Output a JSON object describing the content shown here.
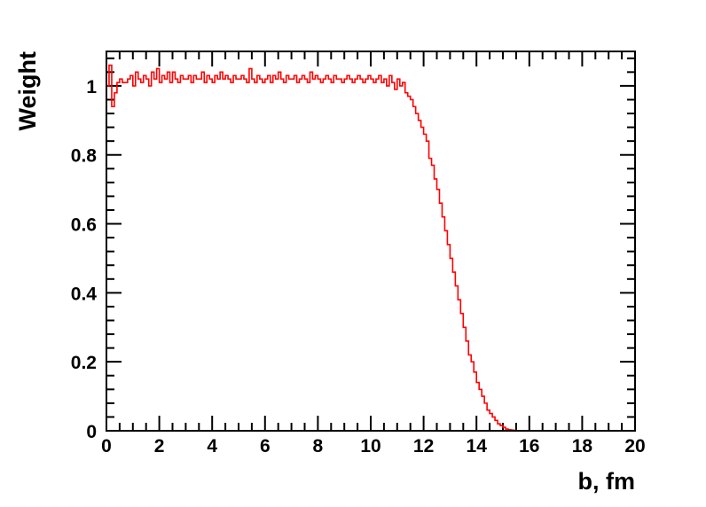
{
  "chart_data": {
    "type": "histogram",
    "title": "",
    "xlabel": "b, fm",
    "ylabel": "Weight",
    "xlim": [
      0,
      20
    ],
    "ylim": [
      0,
      1.1
    ],
    "x_ticks": [
      0,
      2,
      4,
      6,
      8,
      10,
      12,
      14,
      16,
      18,
      20
    ],
    "x_tick_labels": [
      "0",
      "2",
      "4",
      "6",
      "8",
      "10",
      "12",
      "14",
      "16",
      "18",
      "20"
    ],
    "y_ticks": [
      0,
      0.2,
      0.4,
      0.6,
      0.8,
      1
    ],
    "y_tick_labels": [
      "0",
      "0.2",
      "0.4",
      "0.6",
      "0.8",
      "1"
    ],
    "grid": false,
    "legend": "none",
    "bin_width": 0.1,
    "series": [
      {
        "color": "#ff0000",
        "values": [
          1.0,
          1.06,
          0.94,
          0.98,
          1.01,
          1.02,
          1.01,
          1.01,
          1.02,
          1.03,
          1.0,
          1.04,
          1.02,
          1.01,
          1.03,
          1.02,
          1.0,
          1.04,
          1.02,
          1.05,
          1.01,
          1.03,
          1.02,
          1.04,
          1.01,
          1.04,
          1.02,
          1.01,
          1.03,
          1.02,
          1.02,
          1.03,
          1.01,
          1.03,
          1.02,
          1.02,
          1.04,
          1.01,
          1.03,
          1.02,
          1.01,
          1.03,
          1.02,
          1.04,
          1.02,
          1.03,
          1.02,
          1.01,
          1.03,
          1.02,
          1.02,
          1.03,
          1.02,
          1.01,
          1.05,
          1.02,
          1.01,
          1.03,
          1.02,
          1.01,
          1.02,
          1.03,
          1.01,
          1.03,
          1.02,
          1.04,
          1.02,
          1.01,
          1.03,
          1.02,
          1.02,
          1.03,
          1.01,
          1.02,
          1.03,
          1.02,
          1.01,
          1.04,
          1.02,
          1.03,
          1.02,
          1.01,
          1.02,
          1.03,
          1.02,
          1.01,
          1.03,
          1.02,
          1.02,
          1.01,
          1.02,
          1.03,
          1.02,
          1.01,
          1.02,
          1.03,
          1.02,
          1.01,
          1.02,
          1.03,
          1.02,
          1.01,
          1.02,
          1.03,
          1.01,
          1.02,
          1.0,
          1.03,
          1.01,
          0.99,
          1.02,
          1.0,
          1.01,
          0.98,
          0.97,
          0.96,
          0.94,
          0.92,
          0.9,
          0.88,
          0.86,
          0.84,
          0.79,
          0.77,
          0.73,
          0.7,
          0.66,
          0.62,
          0.58,
          0.54,
          0.5,
          0.46,
          0.42,
          0.38,
          0.34,
          0.3,
          0.26,
          0.22,
          0.2,
          0.17,
          0.14,
          0.12,
          0.1,
          0.08,
          0.06,
          0.05,
          0.04,
          0.03,
          0.02,
          0.015,
          0.01,
          0.005,
          0.003,
          0.002,
          0.001,
          0.0,
          0.0,
          0.0,
          0.0,
          0.0,
          0.0,
          0.0,
          0.0,
          0.0,
          0.0,
          0.0,
          0.0,
          0.0,
          0.0,
          0.0,
          0.0,
          0.0,
          0.0,
          0.0,
          0.0,
          0.0,
          0.0,
          0.0,
          0.0,
          0.0,
          0.0,
          0.0,
          0.0,
          0.0,
          0.0,
          0.0,
          0.0,
          0.0,
          0.0,
          0.0,
          0.0,
          0.0,
          0.0,
          0.0,
          0.0,
          0.0,
          0.0,
          0.0,
          0.0,
          0.0
        ]
      }
    ]
  }
}
